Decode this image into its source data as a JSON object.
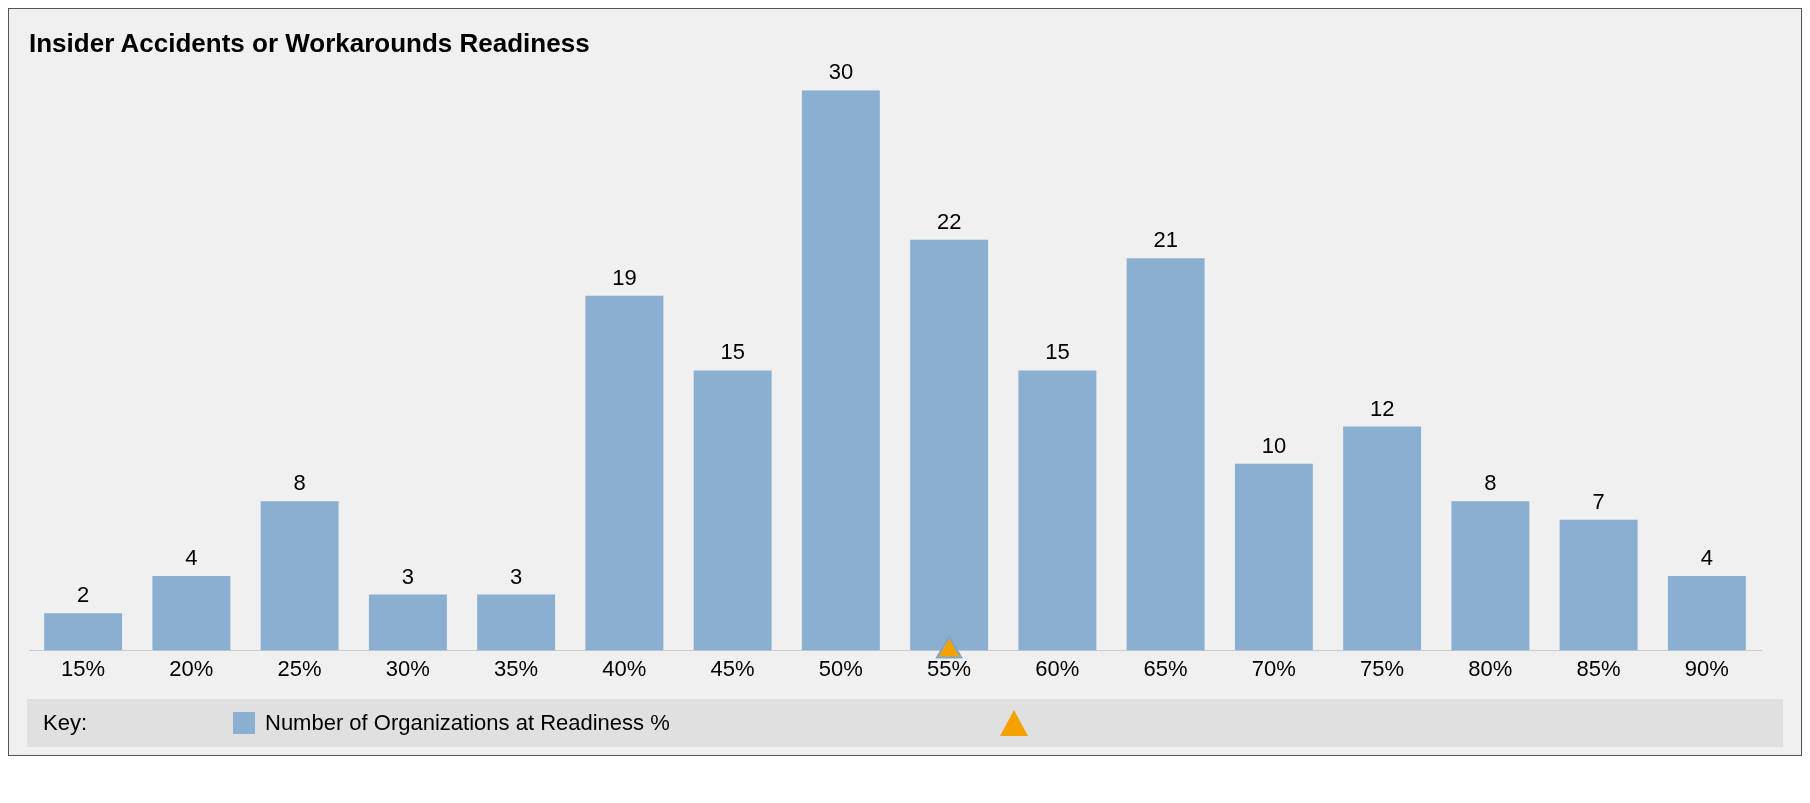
{
  "chart_data": {
    "type": "bar",
    "title": "Insider Accidents or Workarounds Readiness",
    "categories": [
      "15%",
      "20%",
      "25%",
      "30%",
      "35%",
      "40%",
      "45%",
      "50%",
      "55%",
      "60%",
      "65%",
      "70%",
      "75%",
      "80%",
      "85%",
      "90%"
    ],
    "series": [
      {
        "name": "Number of Organizations at Readiness %",
        "color": "#8aafd1",
        "values": [
          2,
          4,
          8,
          3,
          3,
          19,
          15,
          30,
          22,
          15,
          21,
          10,
          12,
          8,
          7,
          4
        ]
      },
      {
        "type": "scatter",
        "color": "#f5a100",
        "marker": "triangle",
        "x": [
          "55%"
        ],
        "values": [
          0
        ],
        "value_labels": [
          null
        ]
      }
    ],
    "data_labels": true,
    "grid": false,
    "legend": "bottom",
    "legend_title": "Key:"
  }
}
